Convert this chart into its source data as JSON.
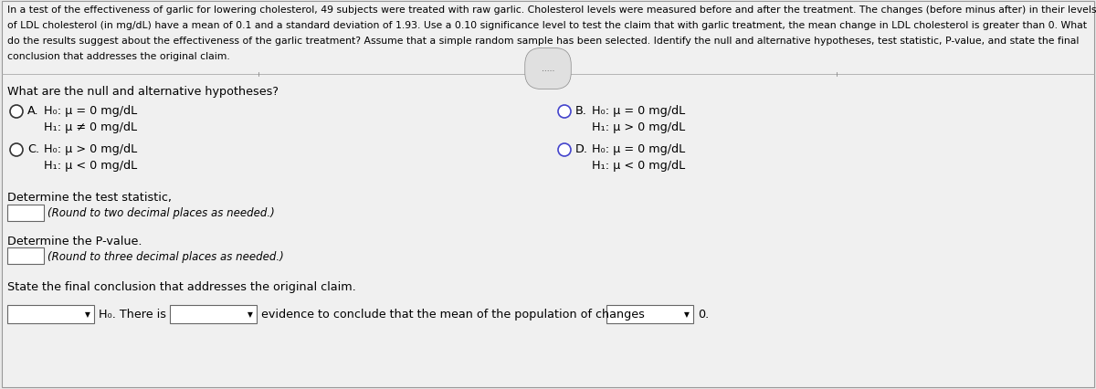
{
  "bg_color": "#e8e8e8",
  "content_bg": "#f0f0f0",
  "border_color": "#cccccc",
  "paragraph_text_lines": [
    "In a test of the effectiveness of garlic for lowering cholesterol, 49 subjects were treated with raw garlic. Cholesterol levels were measured before and after the treatment. The changes (before minus after) in their levels",
    "of LDL cholesterol (in mg/dL) have a mean of 0.1 and a standard deviation of 1.93. Use a 0.10 significance level to test the claim that with garlic treatment, the mean change in LDL cholesterol is greater than 0. What",
    "do the results suggest about the effectiveness of the garlic treatment? Assume that a simple random sample has been selected. Identify the null and alternative hypotheses, test statistic, P-value, and state the final",
    "conclusion that addresses the original claim."
  ],
  "question1": "What are the null and alternative hypotheses?",
  "optA_h0": "H₀: μ = 0 mg/dL",
  "optA_h1": "H₁: μ ≠ 0 mg/dL",
  "optB_h0": "H₀: μ = 0 mg/dL",
  "optB_h1": "H₁: μ > 0 mg/dL",
  "optC_h0": "H₀: μ > 0 mg/dL",
  "optC_h1": "H₁: μ < 0 mg/dL",
  "optD_h0": "H₀: μ = 0 mg/dL",
  "optD_h1": "H₁: μ < 0 mg/dL",
  "question2": "Determine the test statistic,",
  "q2_sub": "(Round to two decimal places as needed.)",
  "question3": "Determine the P-value.",
  "q3_sub": "(Round to three decimal places as needed.)",
  "question4": "State the final conclusion that addresses the original claim.",
  "conclusion_text": "evidence to conclude that the mean of the population of changes",
  "conclusion_end": "0.",
  "label_H0": "H₀. There is",
  "dots_label": ".....",
  "radio_color_unselected": "#4444cc",
  "radio_color_A": "#000000",
  "radio_color_C": "#000000",
  "radio_color_B": "#4444cc",
  "radio_color_D": "#4444cc"
}
